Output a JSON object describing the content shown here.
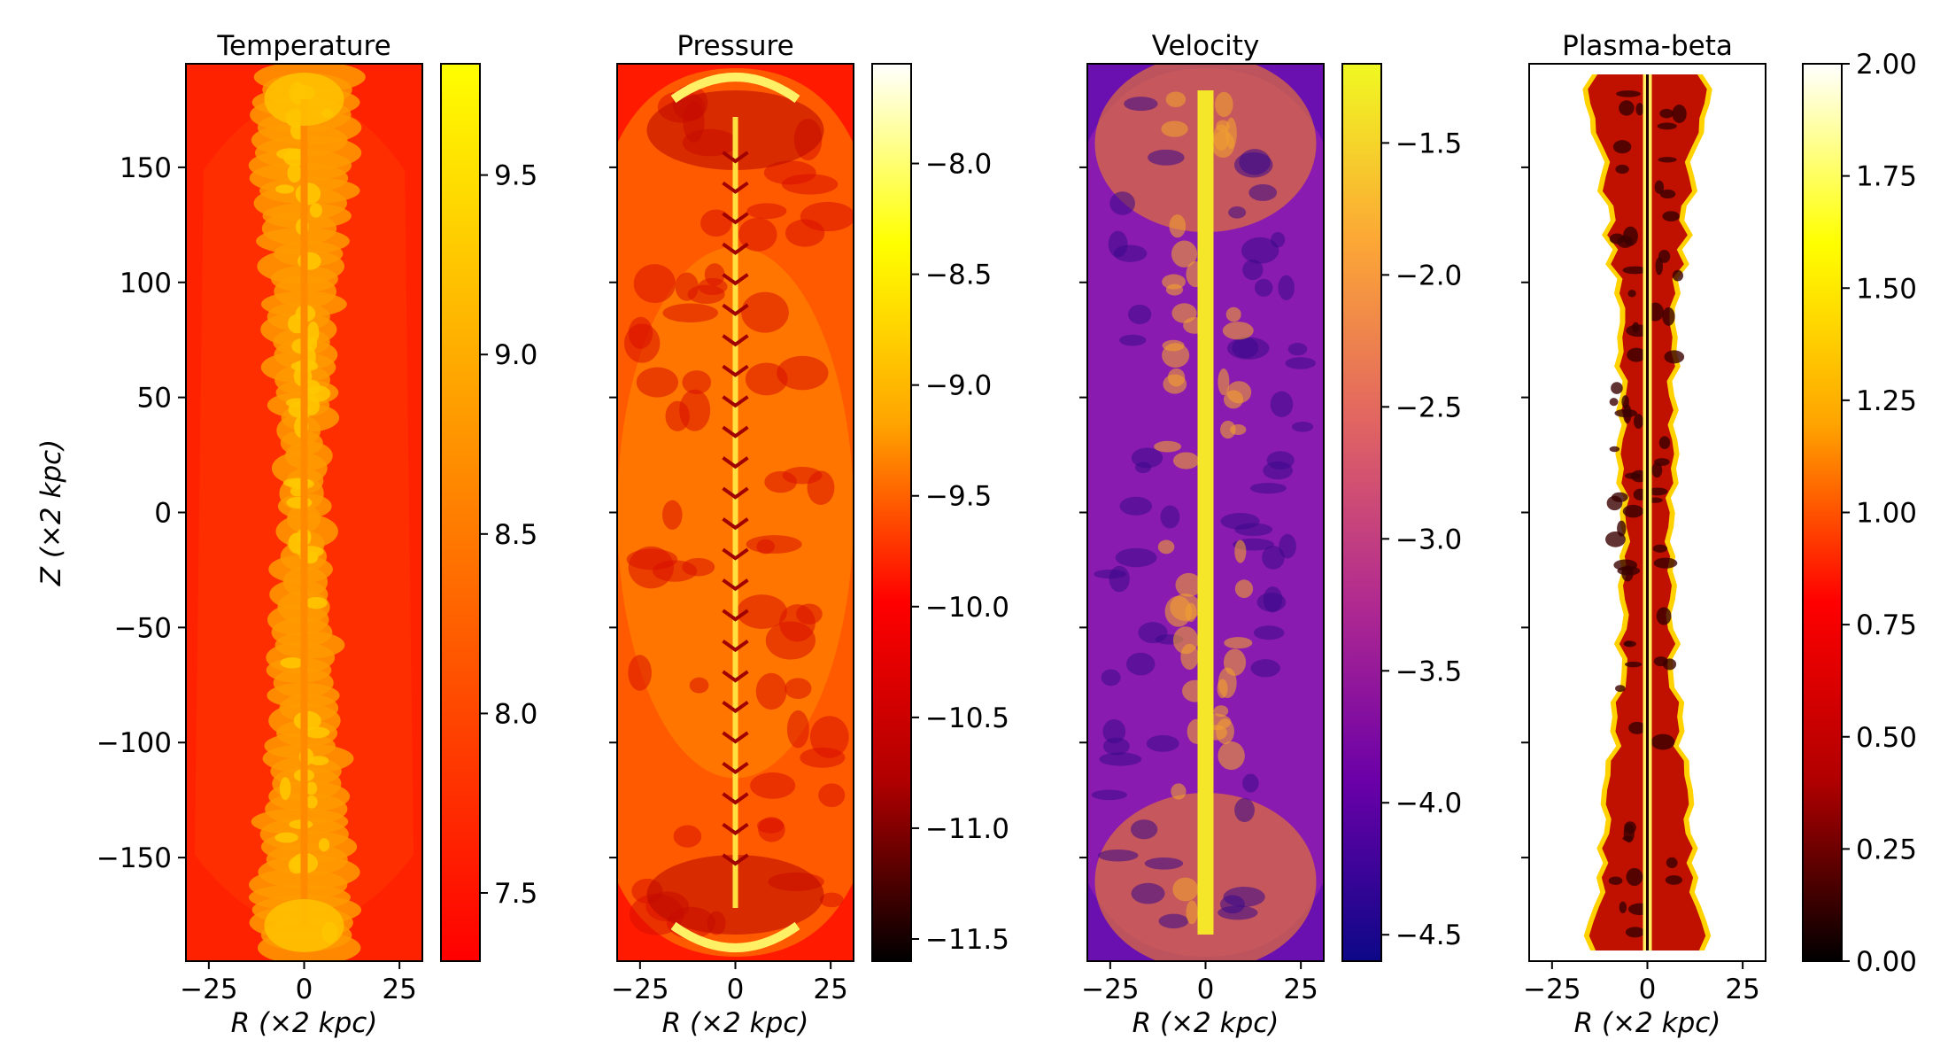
{
  "chart_data": {
    "type": "heatmap",
    "shared": {
      "xlabel": "R (×2 kpc)",
      "ylabel": "Z (×2 kpc)",
      "xlim": [
        -31,
        31
      ],
      "ylim": [
        -195,
        195
      ],
      "xticks": [
        -25,
        0,
        25
      ],
      "xtick_labels": [
        "−25",
        "0",
        "25"
      ],
      "yticks": [
        -150,
        -100,
        -50,
        0,
        50,
        100,
        150
      ],
      "ytick_labels": [
        "−150",
        "−100",
        "−50",
        "0",
        "50",
        "100",
        "150"
      ]
    },
    "panels": [
      {
        "title": "Temperature",
        "colormap": "autumn",
        "colors": [
          "#ff0000",
          "#ffff00"
        ],
        "background": "#ff2200",
        "vlim": [
          7.31,
          9.81
        ],
        "cbar_ticks": [
          7.5,
          8.0,
          8.5,
          9.0,
          9.5
        ],
        "cbar_tick_labels": [
          "7.5",
          "8.0",
          "8.5",
          "9.0",
          "9.5"
        ]
      },
      {
        "title": "Pressure",
        "colormap": "hot",
        "colors": [
          "#000000",
          "#b00000",
          "#ff0000",
          "#ffa500",
          "#ffff00",
          "#ffffff"
        ],
        "background": "#ff1a00",
        "vlim": [
          -11.6,
          -7.55
        ],
        "cbar_ticks": [
          -11.5,
          -11.0,
          -10.5,
          -10.0,
          -9.5,
          -9.0,
          -8.5,
          -8.0
        ],
        "cbar_tick_labels": [
          "−11.5",
          "−11.0",
          "−10.5",
          "−10.0",
          "−9.5",
          "−9.0",
          "−8.5",
          "−8.0"
        ]
      },
      {
        "title": "Velocity",
        "colormap": "plasma",
        "colors": [
          "#0d0887",
          "#6a00a8",
          "#b12a90",
          "#e16462",
          "#fca636",
          "#f0f921"
        ],
        "background": "#6a10b0",
        "vlim": [
          -4.6,
          -1.2
        ],
        "cbar_ticks": [
          -4.5,
          -4.0,
          -3.5,
          -3.0,
          -2.5,
          -2.0,
          -1.5
        ],
        "cbar_tick_labels": [
          "−4.5",
          "−4.0",
          "−3.5",
          "−3.0",
          "−2.5",
          "−2.0",
          "−1.5"
        ]
      },
      {
        "title": "Plasma-beta",
        "colormap": "hot",
        "colors": [
          "#000000",
          "#b00000",
          "#ff0000",
          "#ffa500",
          "#ffff00",
          "#ffffff"
        ],
        "background": "#ffffff",
        "vlim": [
          0.0,
          2.0
        ],
        "cbar_ticks": [
          0.0,
          0.25,
          0.5,
          0.75,
          1.0,
          1.25,
          1.5,
          1.75,
          2.0
        ],
        "cbar_tick_labels": [
          "0.00",
          "0.25",
          "0.50",
          "0.75",
          "1.00",
          "1.25",
          "1.50",
          "1.75",
          "2.00"
        ]
      }
    ]
  }
}
